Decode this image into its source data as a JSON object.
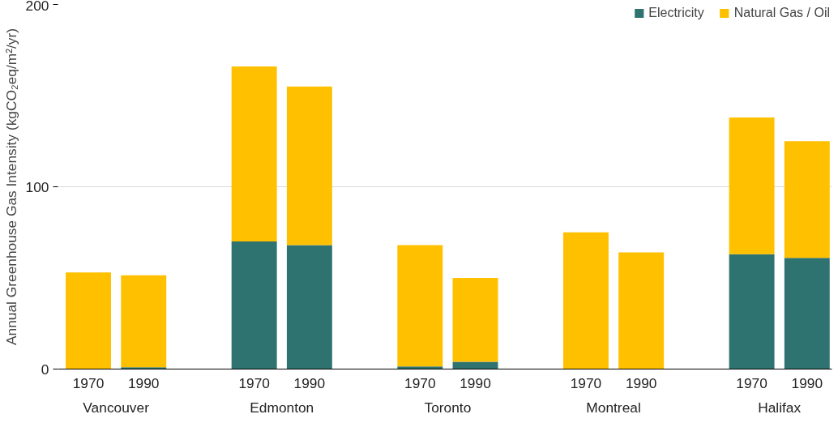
{
  "chart_data": {
    "type": "bar",
    "stacked": true,
    "ylabel": "Annual Greenhouse Gas Intensity (kgCO₂eq/m²/yr)",
    "categories": [
      "1970",
      "1990",
      "1970",
      "1990",
      "1970",
      "1990",
      "1970",
      "1990",
      "1970",
      "1990"
    ],
    "annotations": [
      "Vancouver",
      "Edmonton",
      "Toronto",
      "Montreal",
      "Halifax"
    ],
    "series": [
      {
        "name": "Electricity",
        "color": "#2e7370",
        "values": [
          0,
          1,
          70,
          68,
          1.5,
          4,
          0,
          0,
          63,
          61
        ]
      },
      {
        "name": "Natural Gas / Oil",
        "color": "#ffc000",
        "values": [
          53,
          50.5,
          96,
          87,
          66.5,
          46,
          75,
          64,
          75,
          64
        ]
      }
    ],
    "ylim": [
      0,
      200
    ],
    "yticks": [
      0,
      100,
      200
    ],
    "grid": "y",
    "legend": "top right"
  }
}
